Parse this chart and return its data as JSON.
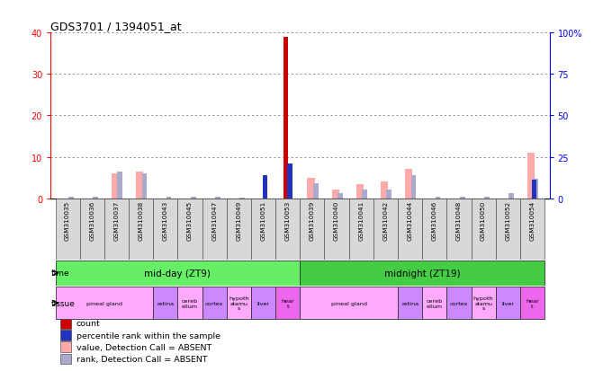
{
  "title": "GDS3701 / 1394051_at",
  "samples": [
    "GSM310035",
    "GSM310036",
    "GSM310037",
    "GSM310038",
    "GSM310043",
    "GSM310045",
    "GSM310047",
    "GSM310049",
    "GSM310051",
    "GSM310053",
    "GSM310039",
    "GSM310040",
    "GSM310041",
    "GSM310042",
    "GSM310044",
    "GSM310046",
    "GSM310048",
    "GSM310050",
    "GSM310052",
    "GSM310054"
  ],
  "count_values": [
    0,
    0,
    0,
    0,
    0,
    0,
    0,
    0,
    0,
    39,
    0,
    0,
    0,
    0,
    0,
    0,
    0,
    0,
    0,
    0
  ],
  "rank_values": [
    0,
    0,
    0,
    0,
    0,
    0,
    0,
    0,
    14,
    21,
    0,
    0,
    0,
    0,
    0,
    0,
    0,
    0,
    0,
    11
  ],
  "absent_count": [
    0,
    0,
    6,
    6.5,
    0,
    0,
    0,
    0,
    0,
    0,
    5,
    2,
    3.5,
    4,
    7,
    0,
    0,
    0,
    0,
    11
  ],
  "absent_rank": [
    1,
    1,
    16,
    15,
    1,
    1,
    1,
    0.5,
    0,
    0,
    9,
    3,
    5,
    5.5,
    14,
    1,
    1,
    1,
    3,
    12
  ],
  "ylim_left": [
    0,
    40
  ],
  "ylim_right": [
    0,
    100
  ],
  "yticks_left": [
    0,
    10,
    20,
    30,
    40
  ],
  "yticks_right": [
    0,
    25,
    50,
    75,
    100
  ],
  "time_groups": [
    {
      "label": "mid-day (ZT9)",
      "start": 0,
      "end": 9,
      "color": "#66ee66"
    },
    {
      "label": "midnight (ZT19)",
      "start": 10,
      "end": 19,
      "color": "#44cc44"
    }
  ],
  "tissue_groups": [
    {
      "label": "pineal gland",
      "start": 0,
      "end": 3,
      "color": "#ffaaff"
    },
    {
      "label": "retina",
      "start": 4,
      "end": 4,
      "color": "#cc88ff"
    },
    {
      "label": "cereb\nellum",
      "start": 5,
      "end": 5,
      "color": "#ffaaff"
    },
    {
      "label": "cortex",
      "start": 6,
      "end": 6,
      "color": "#cc88ff"
    },
    {
      "label": "hypoth\nalamu\ns",
      "start": 7,
      "end": 7,
      "color": "#ffaaff"
    },
    {
      "label": "liver",
      "start": 8,
      "end": 8,
      "color": "#cc88ff"
    },
    {
      "label": "hear\nt",
      "start": 9,
      "end": 9,
      "color": "#ee66ee"
    },
    {
      "label": "pineal gland",
      "start": 10,
      "end": 13,
      "color": "#ffaaff"
    },
    {
      "label": "retina",
      "start": 14,
      "end": 14,
      "color": "#cc88ff"
    },
    {
      "label": "cereb\nellum",
      "start": 15,
      "end": 15,
      "color": "#ffaaff"
    },
    {
      "label": "cortex",
      "start": 16,
      "end": 16,
      "color": "#cc88ff"
    },
    {
      "label": "hypoth\nalamu\ns",
      "start": 17,
      "end": 17,
      "color": "#ffaaff"
    },
    {
      "label": "liver",
      "start": 18,
      "end": 18,
      "color": "#cc88ff"
    },
    {
      "label": "hear\nt",
      "start": 19,
      "end": 19,
      "color": "#ee66ee"
    }
  ],
  "color_count": "#cc0000",
  "color_rank": "#2233bb",
  "color_absent_count": "#ffaaaa",
  "color_absent_rank": "#aaaacc",
  "background_color": "#ffffff",
  "grid_color": "#888888",
  "legend_items": [
    {
      "label": "count",
      "color": "#cc0000"
    },
    {
      "label": "percentile rank within the sample",
      "color": "#2233bb"
    },
    {
      "label": "value, Detection Call = ABSENT",
      "color": "#ffaaaa"
    },
    {
      "label": "rank, Detection Call = ABSENT",
      "color": "#aaaacc"
    }
  ]
}
